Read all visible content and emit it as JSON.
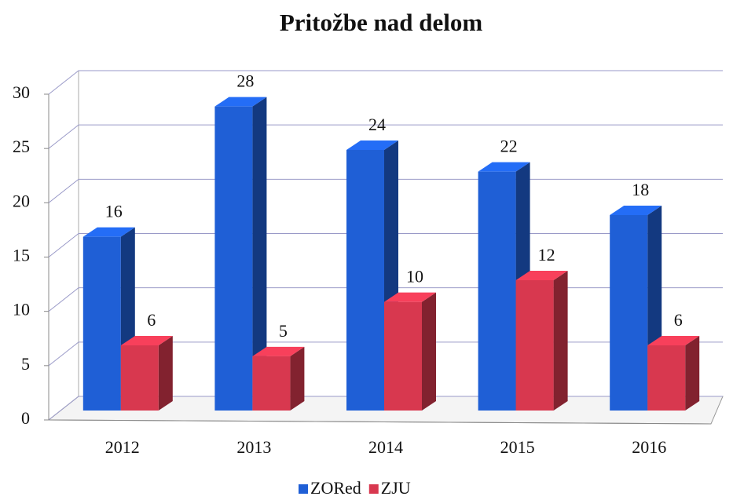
{
  "chart_data": {
    "type": "bar3d",
    "title": "Pritožbe nad delom",
    "categories": [
      "2012",
      "2013",
      "2014",
      "2015",
      "2016"
    ],
    "series": [
      {
        "name": "ZORed",
        "color": "#1f5fd6",
        "values": [
          16,
          28,
          24,
          22,
          18
        ]
      },
      {
        "name": "ZJU",
        "color": "#d8384f",
        "values": [
          6,
          5,
          10,
          12,
          6
        ]
      }
    ],
    "ylim": [
      0,
      30
    ],
    "yticks": [
      0,
      5,
      10,
      15,
      20,
      25,
      30
    ],
    "grid": true,
    "legend": "bottom"
  }
}
